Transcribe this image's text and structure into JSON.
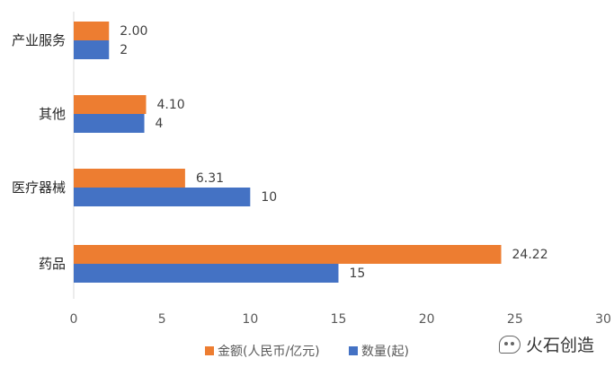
{
  "chart_data": {
    "type": "bar",
    "orientation": "horizontal",
    "categories": [
      "产业服务",
      "其他",
      "医疗器械",
      "药品"
    ],
    "series": [
      {
        "name": "金额(人民币/亿元)",
        "color": "#ED7D31",
        "values": [
          2.0,
          4.1,
          6.31,
          24.22
        ],
        "labels": [
          "2.00",
          "4.10",
          "6.31",
          "24.22"
        ]
      },
      {
        "name": "数量(起)",
        "color": "#4472C4",
        "values": [
          2,
          4,
          10,
          15
        ],
        "labels": [
          "2",
          "4",
          "10",
          "15"
        ]
      }
    ],
    "xlim": [
      0,
      30
    ],
    "xticks": [
      0,
      5,
      10,
      15,
      20,
      25,
      30
    ],
    "grid": false,
    "legend_position": "bottom"
  },
  "watermark": {
    "text": "火石创造",
    "icon": "wechat-icon"
  }
}
